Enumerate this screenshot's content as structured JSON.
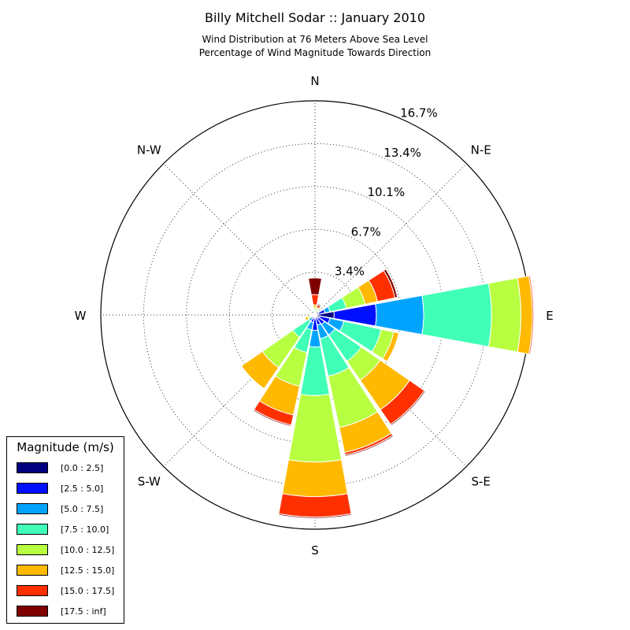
{
  "chart_data": {
    "type": "windrose",
    "title": "Billy Mitchell Sodar :: January 2010",
    "subtitle_line1": "Wind Distribution at 76 Meters Above Sea Level",
    "subtitle_line2": "Percentage of Wind Magnitude Towards Direction",
    "compass_labels": [
      {
        "label": "N",
        "angle": 0
      },
      {
        "label": "N-E",
        "angle": 45
      },
      {
        "label": "E",
        "angle": 90
      },
      {
        "label": "S-E",
        "angle": 135
      },
      {
        "label": "S",
        "angle": 180
      },
      {
        "label": "S-W",
        "angle": 225
      },
      {
        "label": "W",
        "angle": 270
      },
      {
        "label": "N-W",
        "angle": 315
      }
    ],
    "radial_ticks": [
      {
        "value": 3.35,
        "label": "3.4%"
      },
      {
        "value": 6.7,
        "label": "6.7%"
      },
      {
        "value": 10.05,
        "label": "10.1%"
      },
      {
        "value": 13.4,
        "label": "13.4%"
      },
      {
        "value": 16.75,
        "label": "16.7%"
      }
    ],
    "r_max": 16.75,
    "sector_width_deg": 22.5,
    "legend_title": "Magnitude (m/s)",
    "legend_placement": "lower-left",
    "bins": [
      {
        "label": "[0.0 : 2.5]",
        "color": "#000080"
      },
      {
        "label": "[2.5 : 5.0]",
        "color": "#0010ff"
      },
      {
        "label": "[5.0 : 7.5]",
        "color": "#00a4ff"
      },
      {
        "label": "[7.5 : 10.0]",
        "color": "#40ffb7"
      },
      {
        "label": "[10.0 : 12.5]",
        "color": "#b7ff40"
      },
      {
        "label": "[12.5 : 15.0]",
        "color": "#ffb900"
      },
      {
        "label": "[15.0 : 17.5]",
        "color": "#ff3000"
      },
      {
        "label": "[17.5 : inf]",
        "color": "#800000"
      }
    ],
    "directions": [
      {
        "angle": 0,
        "cumulative": [
          0.1,
          0.2,
          0.3,
          0.4,
          0.6,
          0.8,
          1.6,
          2.9
        ]
      },
      {
        "angle": 22.5,
        "cumulative": [
          0.1,
          0.2,
          0.3,
          0.4,
          0.5,
          0.6,
          0.8,
          0.9
        ]
      },
      {
        "angle": 67.5,
        "cumulative": [
          0.3,
          0.8,
          1.2,
          2.5,
          4.0,
          5.0,
          6.4,
          6.6
        ]
      },
      {
        "angle": 90,
        "cumulative": [
          1.5,
          4.8,
          8.5,
          13.8,
          16.1,
          17.0,
          17.1,
          17.1
        ]
      },
      {
        "angle": 112.5,
        "cumulative": [
          0.4,
          1.2,
          2.3,
          5.3,
          6.3,
          6.7,
          6.7,
          6.7
        ]
      },
      {
        "angle": 135,
        "cumulative": [
          0.3,
          0.9,
          1.9,
          4.4,
          6.2,
          9.0,
          10.4,
          10.5
        ]
      },
      {
        "angle": 157.5,
        "cumulative": [
          0.2,
          0.8,
          1.9,
          4.9,
          9.0,
          11.0,
          11.2,
          11.3
        ]
      },
      {
        "angle": 180,
        "cumulative": [
          0.3,
          1.2,
          2.5,
          6.3,
          11.5,
          14.2,
          15.8,
          15.9
        ]
      },
      {
        "angle": 202.5,
        "cumulative": [
          0.2,
          0.6,
          1.2,
          3.0,
          5.7,
          8.0,
          8.8,
          8.9
        ]
      },
      {
        "angle": 225,
        "cumulative": [
          0.1,
          0.3,
          0.6,
          2.1,
          5.0,
          7.0,
          7.0,
          7.0
        ]
      },
      {
        "angle": 247.5,
        "cumulative": [
          0.1,
          0.2,
          0.3,
          0.4,
          0.6,
          0.8,
          0.8,
          0.8
        ]
      },
      {
        "angle": 270,
        "cumulative": [
          0.1,
          0.2,
          0.2,
          0.3,
          0.3,
          0.3,
          0.3,
          0.3
        ]
      },
      {
        "angle": 292.5,
        "cumulative": [
          0.1,
          0.1,
          0.2,
          0.2,
          0.2,
          0.2,
          0.2,
          0.2
        ]
      },
      {
        "angle": 315,
        "cumulative": [
          0.1,
          0.1,
          0.1,
          0.1,
          0.1,
          0.1,
          0.1,
          0.1
        ]
      },
      {
        "angle": 337.5,
        "cumulative": [
          0.1,
          0.1,
          0.1,
          0.1,
          0.1,
          0.1,
          0.1,
          0.1
        ]
      }
    ]
  }
}
